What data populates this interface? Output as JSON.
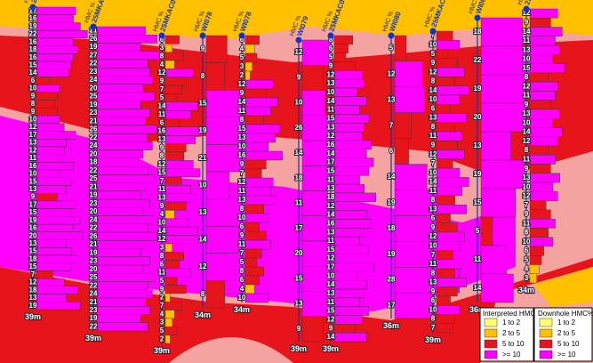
{
  "hmc_label": "HMC %",
  "legend": {
    "interpreted_title": "Interpreted HMC%",
    "downhole_title": "Downhole HMC%",
    "items": [
      {
        "label": "1 to 2",
        "min": 1,
        "color": "#ffff70"
      },
      {
        "label": "2 to 5",
        "min": 2,
        "color": "#ffc000"
      },
      {
        "label": "5 to 10",
        "min": 5,
        "color": "#e8141c"
      },
      {
        "label": ">= 10",
        "min": 10,
        "color": "#ff00ff"
      }
    ]
  },
  "holes": [
    {
      "name": "25MKA",
      "depth": "39m",
      "values": [
        17,
        16,
        19,
        22,
        16,
        18,
        16,
        15,
        14,
        6,
        10,
        9,
        8,
        9,
        10,
        12,
        17,
        13,
        12,
        11,
        16,
        10,
        15,
        13,
        9,
        17,
        15,
        19,
        16,
        20,
        13,
        15,
        18,
        15,
        7,
        12,
        18,
        13,
        19
      ]
    },
    {
      "name": "25MKA",
      "depth": "39m",
      "values": [
        21,
        26,
        19,
        27,
        22,
        23,
        24,
        20,
        25,
        19,
        23,
        21,
        26,
        22,
        24,
        20,
        18,
        22,
        25,
        21,
        19,
        23,
        20,
        24,
        22,
        26,
        21,
        19,
        23,
        20,
        25,
        22,
        24,
        21,
        23,
        19,
        22
      ]
    },
    {
      "name": "25MKAC057",
      "depth": "39m",
      "values": [
        6,
        3,
        8,
        4,
        12,
        9,
        7,
        5,
        14,
        11,
        6,
        16,
        13,
        9,
        8,
        12,
        15,
        7,
        11,
        13,
        9,
        4,
        10,
        14,
        12,
        3,
        8,
        6,
        11,
        5,
        9,
        2,
        7,
        4,
        3,
        5,
        2
      ]
    },
    {
      "name": "WI078",
      "depth": "34m",
      "values": [
        9,
        8,
        15,
        19,
        21,
        10,
        13,
        14,
        12,
        8
      ]
    },
    {
      "name": "WI078",
      "depth": "34m",
      "values": [
        6,
        4,
        5,
        3,
        2,
        12,
        9,
        14,
        11,
        8,
        15,
        13,
        10,
        16,
        9,
        7,
        12,
        11,
        13,
        8,
        10,
        6,
        9,
        11,
        7,
        5,
        8,
        6,
        4,
        10
      ]
    },
    {
      "name": "WI079",
      "depth": "39m",
      "values": [
        12,
        9,
        10,
        26,
        14,
        18,
        11,
        17,
        20,
        15,
        13,
        9
      ]
    },
    {
      "name": "25MKAC05",
      "depth": "39m",
      "values": [
        8,
        6,
        5,
        9,
        12,
        13,
        10,
        14,
        11,
        15,
        13,
        12,
        16,
        14,
        17,
        15,
        11,
        13,
        18,
        12,
        14,
        16,
        13,
        11,
        15,
        12,
        17,
        10,
        14,
        13,
        11,
        15,
        12,
        9,
        14
      ]
    },
    {
      "name": "WI080",
      "depth": "36m",
      "values": [
        5,
        12,
        13,
        7,
        6,
        14,
        19,
        18,
        19,
        28,
        17
      ]
    },
    {
      "name": "25MKAC",
      "depth": "39m",
      "values": [
        7,
        10,
        5,
        9,
        12,
        8,
        14,
        10,
        6,
        13,
        8,
        11,
        9,
        12,
        7,
        10,
        14,
        11,
        8,
        13,
        6,
        9,
        12,
        10,
        7,
        11,
        8,
        13,
        9,
        6,
        10,
        8,
        7
      ]
    },
    {
      "name": "WI08",
      "depth": "36m",
      "values": [
        18,
        22,
        19,
        20,
        13,
        19,
        15,
        5,
        11,
        14
      ]
    },
    {
      "name": "25",
      "depth": "34m",
      "values": [
        12,
        9,
        14,
        11,
        13,
        10,
        15,
        8,
        12,
        11,
        9,
        13,
        10,
        14,
        12,
        8,
        11,
        9,
        13,
        10,
        12,
        7,
        9,
        11,
        8,
        10,
        6,
        5,
        4,
        3
      ]
    }
  ]
}
